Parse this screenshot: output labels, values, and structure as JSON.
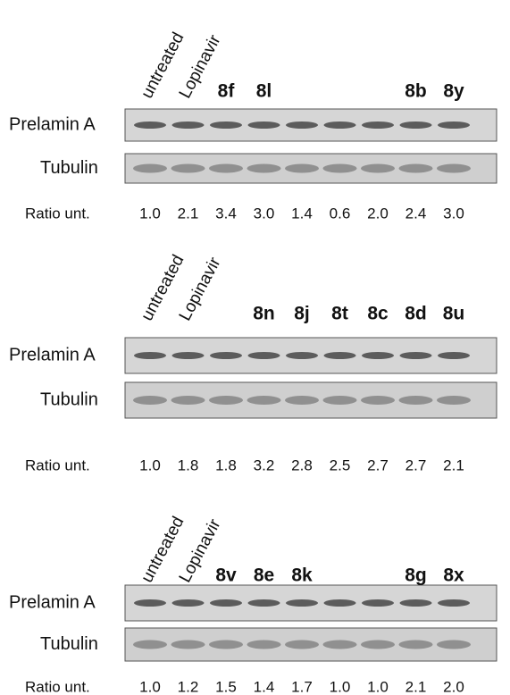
{
  "panels": [
    {
      "row_labels": [
        "Prelamin A",
        "Tubulin",
        "Ratio unt."
      ],
      "lane_labels": [
        "untreated",
        "Lopinavir",
        "8f",
        "8l",
        null,
        null,
        null,
        "8b",
        "8y"
      ],
      "ratios": [
        "1.0",
        "2.1",
        "3.4",
        "3.0",
        "1.4",
        "0.6",
        "2.0",
        "2.4",
        "3.0"
      ]
    },
    {
      "row_labels": [
        "Prelamin A",
        "Tubulin",
        "Ratio unt."
      ],
      "lane_labels": [
        "untreated",
        "Lopinavir",
        null,
        "8n",
        "8j",
        "8t",
        "8c",
        "8d",
        "8u"
      ],
      "ratios": [
        "1.0",
        "1.8",
        "1.8",
        "3.2",
        "2.8",
        "2.5",
        "2.7",
        "2.7",
        "2.1"
      ]
    },
    {
      "row_labels": [
        "Prelamin A",
        "Tubulin",
        "Ratio unt."
      ],
      "lane_labels": [
        "untreated",
        "Lopinavir",
        "8v",
        "8e",
        "8k",
        null,
        null,
        "8g",
        "8x"
      ],
      "ratios": [
        "1.0",
        "1.2",
        "1.5",
        "1.4",
        "1.7",
        "1.0",
        "1.0",
        "2.1",
        "2.0"
      ]
    }
  ]
}
